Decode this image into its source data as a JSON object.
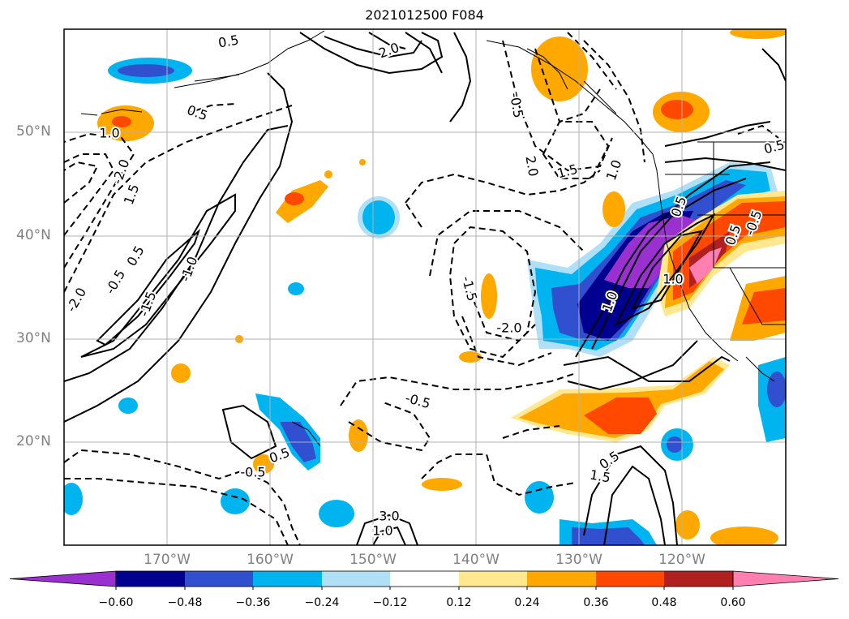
{
  "title": "2021012500 F084",
  "lat_labels": [
    "50°N",
    "40°N",
    "30°N",
    "20°N"
  ],
  "lon_labels": [
    "170°W",
    "160°W",
    "150°W",
    "140°W",
    "130°W",
    "120°W"
  ],
  "colorbar": {
    "ticks": [
      "−0.60",
      "−0.48",
      "−0.36",
      "−0.24",
      "−0.12",
      "0.12",
      "0.24",
      "0.36",
      "0.48",
      "0.60"
    ],
    "colors": [
      "#9b30d0",
      "#000090",
      "#3050d0",
      "#00b4f0",
      "#b0e0f8",
      "#ffffff",
      "#ffe890",
      "#ffa800",
      "#ff4800",
      "#b02020",
      "#ff80b0"
    ]
  },
  "contour_labels": [
    "0.5",
    "2.0",
    "0.5",
    "1.0",
    "1.5",
    "-2.0",
    "0.5",
    "-0.5",
    "-2.0",
    "-1.5",
    "-1.0",
    "-0.5",
    "2.0",
    "1.5",
    "1.0",
    "0.5",
    "-1.5",
    "-2.0",
    "-0.5",
    "0.5",
    "-0.5",
    "0.5",
    "1.0",
    "0.5",
    "-0.5",
    "1.0",
    "3.0",
    "1.0",
    "1.5",
    "0.5"
  ]
}
